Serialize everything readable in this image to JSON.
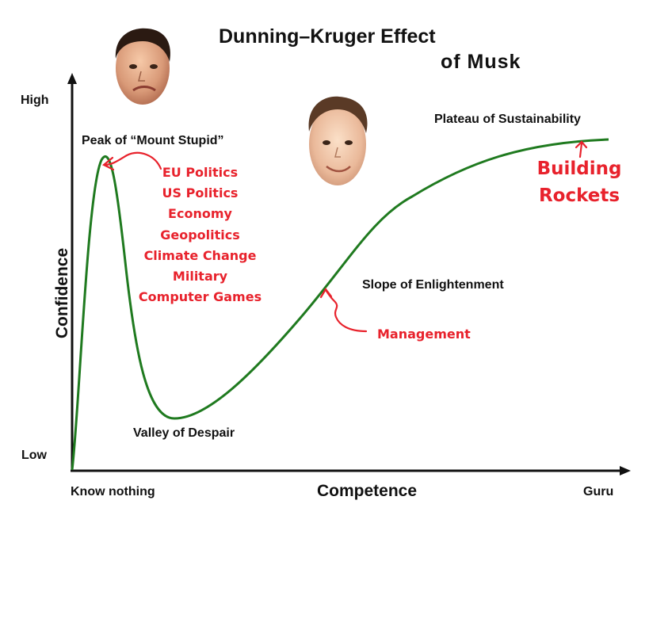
{
  "title": {
    "line1": "Dunning–Kruger Effect",
    "line2": "of Musk"
  },
  "axes": {
    "y_label": "Confidence",
    "y_high": "High",
    "y_low": "Low",
    "x_label": "Competence",
    "x_left": "Know nothing",
    "x_right": "Guru"
  },
  "stages": {
    "peak": "Peak of “Mount Stupid”",
    "valley": "Valley of Despair",
    "slope": "Slope of Enlightenment",
    "plateau": "Plateau of Sustainability"
  },
  "annotations": {
    "peak_topics": [
      "EU Politics",
      "US Politics",
      "Economy",
      "Geopolitics",
      "Climate Change",
      "Military",
      "Computer Games"
    ],
    "slope_topic": "Management",
    "plateau_topic": [
      "Building",
      "Rockets"
    ]
  },
  "colors": {
    "curve": "#1f7a1f",
    "annotation": "#e8222c",
    "axis": "#111111"
  },
  "icons": {
    "face_peak": "musk-face-photo",
    "face_slope": "young-musk-face-photo"
  }
}
